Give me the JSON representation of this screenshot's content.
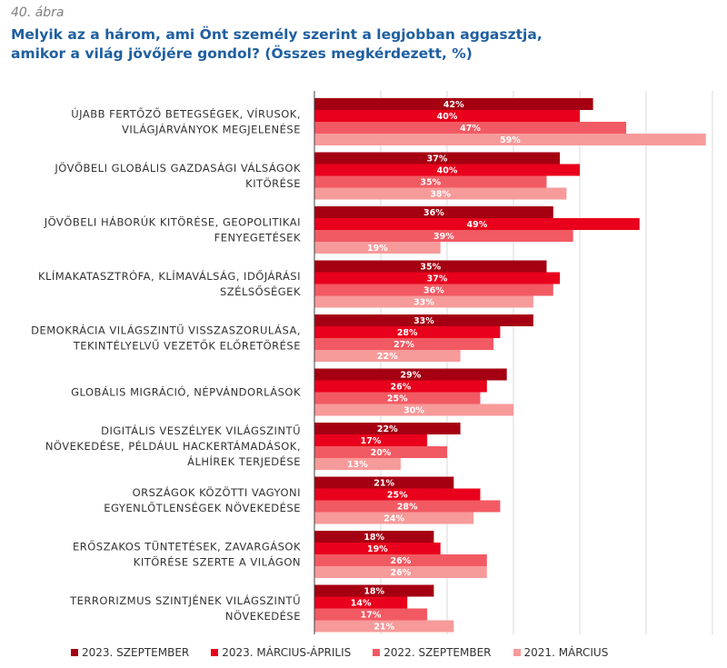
{
  "figure_number": "40. ábra",
  "title_lines": [
    "Melyik az a három, ami Önt személy szerint a legjobban aggasztja,",
    "amikor a világ jövőjére gondol? (Összes megkérdezett, %)"
  ],
  "chart_data": {
    "type": "bar",
    "orientation": "horizontal",
    "grouping": "clustered",
    "categories": [
      [
        "ÚJABB FERTŐZŐ BETEGSÉGEK, VÍRUSOK,",
        "VILÁGJÁRVÁNYOK MEGJELENÉSE"
      ],
      [
        "JÖVŐBELI GLOBÁLIS GAZDASÁGI VÁLSÁGOK",
        "KITÖRÉSE"
      ],
      [
        "JÖVŐBELI HÁBORÚK KITÖRÉSE, GEOPOLITIKAI",
        "FENYEGETÉSEK"
      ],
      [
        "KLÍMAKATASZTRÓFA, KLÍMAVÁLSÁG, IDŐJÁRÁSI",
        "SZÉLSŐSÉGEK"
      ],
      [
        "DEMOKRÁCIA VILÁGSZINTŰ VISSZASZORULÁSA,",
        "TEKINTÉLYELVŰ VEZETŐK ELŐRETÖRÉSE"
      ],
      [
        "GLOBÁLIS MIGRÁCIÓ, NÉPVÁNDORLÁSOK"
      ],
      [
        "DIGITÁLIS VESZÉLYEK VILÁGSZINTŰ",
        "NÖVEKEDÉSE, PÉLDÁUL HACKERTÁMADÁSOK,",
        "ÁLHÍREK TERJEDÉSE"
      ],
      [
        "ORSZÁGOK KÖZÖTTI VAGYONI",
        "EGYENLŐTLENSÉGEK NÖVEKEDÉSE"
      ],
      [
        "ERŐSZAKOS TÜNTETÉSEK, ZAVARGÁSOK",
        "KITÖRÉSE SZERTE A VILÁGON"
      ],
      [
        "TERRORIZMUS SZINTJÉNEK VILÁGSZINTŰ",
        "NÖVEKEDÉSE"
      ]
    ],
    "series": [
      {
        "name": "2023. SZEPTEMBER",
        "color": "#a50012",
        "values": [
          42,
          37,
          36,
          35,
          33,
          29,
          22,
          21,
          18,
          18
        ]
      },
      {
        "name": "2023. MÁRCIUS-ÁPRILIS",
        "color": "#e8001c",
        "values": [
          40,
          40,
          49,
          37,
          28,
          26,
          17,
          25,
          19,
          14
        ]
      },
      {
        "name": "2022. SZEPTEMBER",
        "color": "#f25a63",
        "values": [
          47,
          35,
          39,
          36,
          27,
          25,
          20,
          28,
          26,
          17
        ]
      },
      {
        "name": "2021. MÁRCIUS",
        "color": "#f79a9a",
        "values": [
          59,
          38,
          19,
          33,
          22,
          30,
          13,
          24,
          26,
          21
        ]
      }
    ],
    "value_suffix": "%",
    "xlim": [
      0,
      60
    ],
    "grid": true,
    "legend_position": "bottom"
  }
}
